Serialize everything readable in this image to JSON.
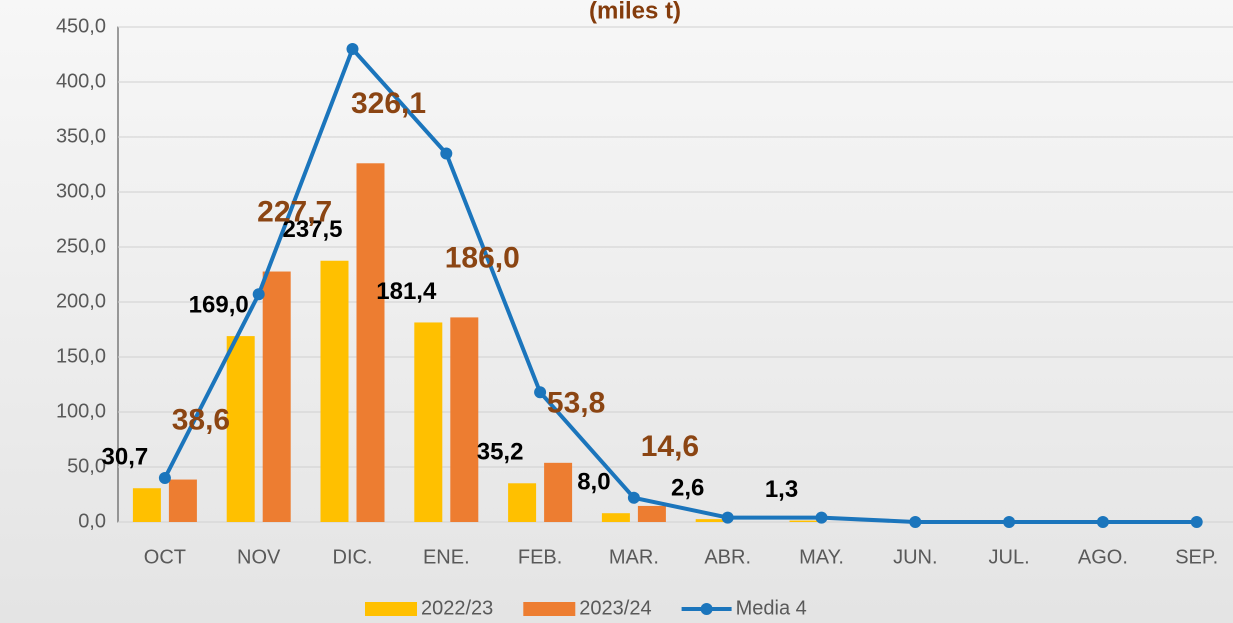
{
  "chart_data": {
    "type": "bar",
    "title": "(miles t)",
    "categories": [
      "OCT",
      "NOV",
      "DIC.",
      "ENE.",
      "FEB.",
      "MAR.",
      "ABR.",
      "MAY.",
      "JUN.",
      "JUL.",
      "AGO.",
      "SEP."
    ],
    "series": [
      {
        "name": "2022/23",
        "type": "bar",
        "color": "#FFC000",
        "values": [
          30.7,
          169.0,
          237.5,
          181.4,
          35.2,
          8.0,
          2.6,
          1.3,
          null,
          null,
          null,
          null
        ],
        "value_labels": [
          "30,7",
          "169,0",
          "237,5",
          "181,4",
          "35,2",
          "8,0",
          "2,6",
          "1,3",
          null,
          null,
          null,
          null
        ]
      },
      {
        "name": "2023/24",
        "type": "bar",
        "color": "#ED7D31",
        "values": [
          38.6,
          227.7,
          326.1,
          186.0,
          53.8,
          14.6,
          null,
          null,
          null,
          null,
          null,
          null
        ],
        "value_labels": [
          "38,6",
          "227,7",
          "326,1",
          "186,0",
          "53,8",
          "14,6",
          null,
          null,
          null,
          null,
          null,
          null
        ]
      },
      {
        "name": "Media 4",
        "type": "line",
        "color": "#1B75BC",
        "values": [
          40,
          207,
          430,
          335,
          118,
          22,
          4,
          4,
          0,
          0,
          0,
          0
        ]
      }
    ],
    "ylim": [
      0,
      450
    ],
    "yticks": [
      {
        "value": 0,
        "label": "0,0"
      },
      {
        "value": 50,
        "label": "50,0"
      },
      {
        "value": 100,
        "label": "100,0"
      },
      {
        "value": 150,
        "label": "150,0"
      },
      {
        "value": 200,
        "label": "200,0"
      },
      {
        "value": 250,
        "label": "250,0"
      },
      {
        "value": 300,
        "label": "300,0"
      },
      {
        "value": 350,
        "label": "350,0"
      },
      {
        "value": 400,
        "label": "400,0"
      },
      {
        "value": 450,
        "label": "450,0"
      }
    ],
    "grid": true,
    "legend": "bottom"
  }
}
